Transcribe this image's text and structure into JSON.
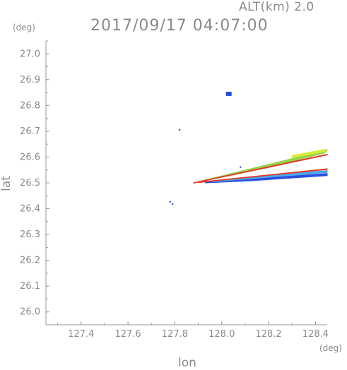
{
  "header": {
    "altitude_label": "ALT(km) 2.0",
    "timestamp": "2017/09/17 04:07:00"
  },
  "axes": {
    "y_unit": "(deg)",
    "x_unit": "(deg)",
    "y_title": "lat",
    "x_title": "lon"
  },
  "chart_data": {
    "type": "scatter",
    "xlabel": "lon",
    "ylabel": "lat",
    "xlim": [
      127.25,
      128.45
    ],
    "ylim": [
      25.95,
      27.05
    ],
    "x_ticks": [
      "127.4",
      "127.6",
      "127.8",
      "128.0",
      "128.2",
      "128.4"
    ],
    "x_tick_values": [
      127.4,
      127.6,
      127.8,
      128.0,
      128.2,
      128.4
    ],
    "y_ticks": [
      "26.0",
      "26.1",
      "26.2",
      "26.3",
      "26.4",
      "26.5",
      "26.6",
      "26.7",
      "26.8",
      "26.9",
      "27.0"
    ],
    "y_tick_values": [
      26.0,
      26.1,
      26.2,
      26.3,
      26.4,
      26.5,
      26.6,
      26.7,
      26.8,
      26.9,
      27.0
    ],
    "grid": false,
    "echo_bands": [
      {
        "color": "#2a4ee0",
        "points": [
          [
            127.93,
            26.5
          ],
          [
            128.12,
            26.508
          ],
          [
            128.45,
            26.528
          ],
          [
            128.45,
            26.536
          ],
          [
            128.12,
            26.516
          ],
          [
            127.93,
            26.503
          ]
        ]
      },
      {
        "color": "#4aa8e8",
        "points": [
          [
            127.96,
            26.504
          ],
          [
            128.2,
            26.522
          ],
          [
            128.45,
            26.54
          ],
          [
            128.45,
            26.548
          ],
          [
            128.2,
            26.53
          ],
          [
            127.96,
            26.508
          ]
        ]
      },
      {
        "color": "#9ad24a",
        "points": [
          [
            127.88,
            26.5
          ],
          [
            128.2,
            26.56
          ],
          [
            128.44,
            26.616
          ],
          [
            128.45,
            26.628
          ],
          [
            128.2,
            26.572
          ],
          [
            127.9,
            26.505
          ]
        ]
      },
      {
        "color": "#d8ec3a",
        "points": [
          [
            128.3,
            26.598
          ],
          [
            128.44,
            26.622
          ],
          [
            128.44,
            26.63
          ],
          [
            128.3,
            26.606
          ]
        ]
      },
      {
        "color": "#e03a2a",
        "points": [
          [
            127.88,
            26.499
          ],
          [
            128.45,
            26.608
          ],
          [
            128.45,
            26.611
          ],
          [
            127.88,
            26.501
          ]
        ]
      },
      {
        "color": "#e03a2a",
        "points": [
          [
            127.9,
            26.501
          ],
          [
            128.45,
            26.552
          ],
          [
            128.45,
            26.555
          ],
          [
            127.9,
            26.503
          ]
        ]
      }
    ],
    "echo_points": [
      {
        "lon": 128.03,
        "lat": 26.845,
        "color": "#2a4ee0",
        "size": "large"
      },
      {
        "lon": 127.82,
        "lat": 26.706,
        "color": "#2a4ee0",
        "size": "small"
      },
      {
        "lon": 128.08,
        "lat": 26.561,
        "color": "#2a4ee0",
        "size": "small"
      },
      {
        "lon": 127.78,
        "lat": 26.427,
        "color": "#2a4ee0",
        "size": "small"
      },
      {
        "lon": 127.79,
        "lat": 26.418,
        "color": "#2a4ee0",
        "size": "small"
      }
    ]
  }
}
